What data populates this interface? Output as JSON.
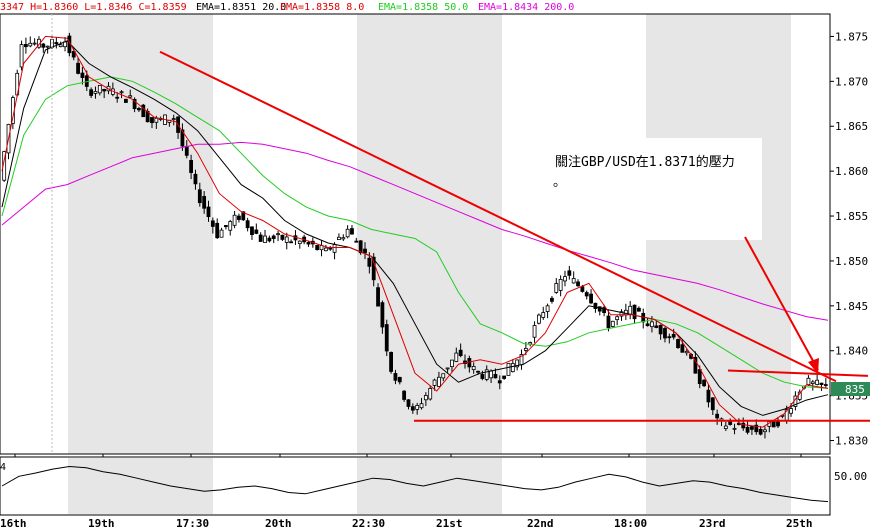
{
  "chart_data": {
    "type": "candlestick",
    "instrument": "GBP/USD",
    "header": {
      "ohlc_text": "3347 H=1.8360 L=1.8346 C=1.8359",
      "indicators": [
        {
          "text": "EMA=1.8351  20.0",
          "color": "#000000"
        },
        {
          "text": "EMA=1.8358  8.0",
          "color": "#dd0000"
        },
        {
          "text": "EMA=1.8358  50.0",
          "color": "#22cc22"
        },
        {
          "text": "EMA=1.8434  200.0",
          "color": "#dd00dd"
        }
      ]
    },
    "y_axis": {
      "range": [
        1.8285,
        1.8775
      ],
      "ticks": [
        "1.875",
        "1.870",
        "1.865",
        "1.860",
        "1.855",
        "1.850",
        "1.845",
        "1.840",
        "1.835",
        "1.830"
      ],
      "last_price_label": "835"
    },
    "x_axis": {
      "labels": [
        "16th",
        "19th",
        "17:30",
        "20th",
        "22:30",
        "21st",
        "22nd",
        "18:00",
        "23rd",
        "25th"
      ]
    },
    "colors": {
      "ema8": "#dd0000",
      "ema20": "#000000",
      "ema50": "#22cc22",
      "ema200": "#dd00dd",
      "trendline": "#ee0000",
      "shade": "#e6e6e6",
      "price_box": "#2e8b57"
    },
    "trendlines": [
      {
        "from": [
          "19th 17:00",
          1.8733
        ],
        "to": [
          "25th",
          1.8366
        ]
      },
      {
        "from": [
          "21st 00:00",
          1.8322
        ],
        "to": [
          "25th",
          1.8322
        ]
      },
      {
        "from": [
          "23rd 06:00",
          1.8378
        ],
        "to": [
          "25th",
          1.8372
        ]
      }
    ],
    "annotation": {
      "text": "關注GBP/USD在1.8371的壓力",
      "text2": "。"
    },
    "oscillator": {
      "label": "4",
      "level_label": "50.00"
    },
    "ema200_values": [
      1.854,
      1.856,
      1.858,
      1.8585,
      1.8595,
      1.8605,
      1.8615,
      1.862,
      1.8625,
      1.863,
      1.863,
      1.8632,
      1.863,
      1.8625,
      1.862,
      1.8612,
      1.8605,
      1.8595,
      1.8585,
      1.8575,
      1.8565,
      1.8555,
      1.8545,
      1.8535,
      1.8528,
      1.852,
      1.8512,
      1.8505,
      1.8498,
      1.849,
      1.8485,
      1.848,
      1.8475,
      1.8468,
      1.846,
      1.8452,
      1.8445,
      1.8438,
      1.8434
    ],
    "ema50_values": [
      1.855,
      1.864,
      1.868,
      1.8695,
      1.87,
      1.8705,
      1.87,
      1.8688,
      1.8675,
      1.866,
      1.8645,
      1.862,
      1.8595,
      1.8575,
      1.856,
      1.855,
      1.8545,
      1.8535,
      1.853,
      1.8525,
      1.851,
      1.8465,
      1.843,
      1.842,
      1.8408,
      1.8405,
      1.841,
      1.842,
      1.8425,
      1.843,
      1.8435,
      1.843,
      1.842,
      1.8405,
      1.839,
      1.8375,
      1.8365,
      1.836,
      1.8358
    ],
    "ema20_values": [
      1.856,
      1.867,
      1.8735,
      1.8745,
      1.872,
      1.8705,
      1.8693,
      1.868,
      1.8665,
      1.8645,
      1.8615,
      1.8585,
      1.857,
      1.8545,
      1.853,
      1.852,
      1.8515,
      1.8505,
      1.8475,
      1.843,
      1.8385,
      1.8365,
      1.8375,
      1.838,
      1.8385,
      1.84,
      1.8425,
      1.845,
      1.8445,
      1.844,
      1.8435,
      1.842,
      1.8395,
      1.836,
      1.8338,
      1.8328,
      1.8335,
      1.8345,
      1.8351
    ],
    "ema8_values": [
      1.86,
      1.872,
      1.875,
      1.8748,
      1.8705,
      1.869,
      1.868,
      1.866,
      1.8655,
      1.862,
      1.8575,
      1.8555,
      1.8545,
      1.853,
      1.8523,
      1.8515,
      1.8515,
      1.8505,
      1.844,
      1.8375,
      1.8355,
      1.8385,
      1.839,
      1.8385,
      1.8395,
      1.842,
      1.8465,
      1.8475,
      1.844,
      1.844,
      1.8435,
      1.842,
      1.8385,
      1.834,
      1.8318,
      1.8315,
      1.833,
      1.8362,
      1.8358
    ],
    "candle_close_values": [
      1.859,
      1.8745,
      1.874,
      1.8745,
      1.869,
      1.869,
      1.868,
      1.8655,
      1.866,
      1.858,
      1.853,
      1.855,
      1.8525,
      1.8525,
      1.852,
      1.851,
      1.8535,
      1.85,
      1.838,
      1.833,
      1.8365,
      1.8395,
      1.8375,
      1.837,
      1.8395,
      1.8445,
      1.8485,
      1.8465,
      1.843,
      1.8445,
      1.8428,
      1.8415,
      1.838,
      1.832,
      1.8315,
      1.831,
      1.8325,
      1.8365,
      1.8359
    ]
  }
}
